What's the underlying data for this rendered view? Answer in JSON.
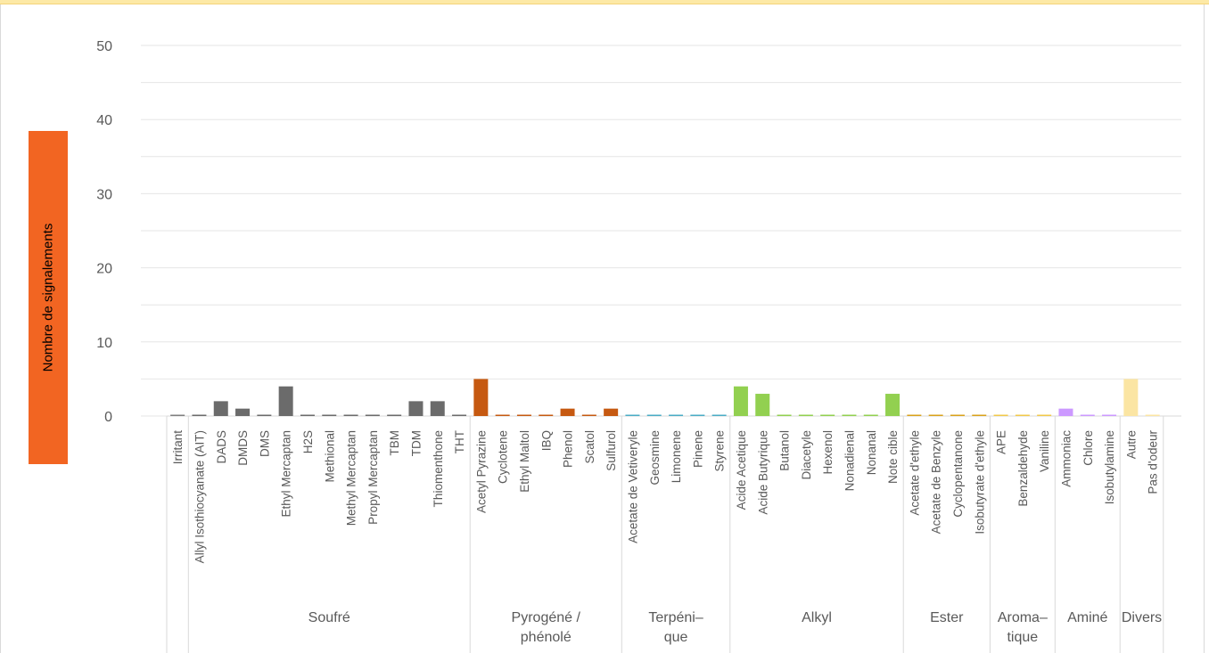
{
  "chart_data": {
    "type": "bar",
    "ylabel": "Nombre de signalements",
    "ylim": [
      0,
      50
    ],
    "yticks": [
      0,
      10,
      20,
      30,
      40,
      50
    ],
    "grid": true,
    "categories": [
      "Irritant",
      "Allyl Isothiocyanate (AIT)",
      "DADS",
      "DMDS",
      "DMS",
      "Ethyl Mercaptan",
      "H2S",
      "Methional",
      "Methyl Mercaptan",
      "Propyl Mercaptan",
      "TBM",
      "TDM",
      "Thiomenthone",
      "THT",
      "Acetyl Pyrazine",
      "Cyclotene",
      "Ethyl Maltol",
      "IBQ",
      "Phenol",
      "Scatol",
      "Sulfurol",
      "Acetate de Vetiveryle",
      "Geosmine",
      "Limonene",
      "Pinene",
      "Styrene",
      "Acide Acetique",
      "Acide Butyrique",
      "Butanol",
      "Diacetyle",
      "Hexenol",
      "Nonadienal",
      "Nonanal",
      "Note cible",
      "Acetate d'ethyle",
      "Acetate de Benzyle",
      "Cyclopentanone",
      "Isobutyrate d'ethyle",
      "APE",
      "Benzaldehyde",
      "Vaniline",
      "Ammoniac",
      "Chlore",
      "Isobutylamine",
      "Autre",
      "Pas d'odeur"
    ],
    "values": [
      0,
      0,
      2,
      1,
      0,
      4,
      0,
      0,
      0,
      0,
      0,
      2,
      2,
      0,
      5,
      0,
      0,
      0,
      1,
      0,
      1,
      0,
      0,
      0,
      0,
      0,
      4,
      3,
      0,
      0,
      0,
      0,
      0,
      3,
      0,
      0,
      0,
      0,
      0,
      0,
      0,
      1,
      0,
      0,
      5,
      0
    ],
    "groups": [
      {
        "name": "",
        "start": 0,
        "count": 1,
        "color": "#7f7f7f",
        "lines": []
      },
      {
        "name": "Soufré",
        "start": 1,
        "count": 13,
        "color": "#6b6b6b",
        "lines": [
          "Soufré"
        ]
      },
      {
        "name": "Pyrogéné / phénolé",
        "start": 14,
        "count": 7,
        "color": "#c65911",
        "lines": [
          "Pyrogéné /",
          "phénolé"
        ]
      },
      {
        "name": "Terpénique",
        "start": 21,
        "count": 5,
        "color": "#4bacc6",
        "lines": [
          "Terpéni–",
          "que"
        ]
      },
      {
        "name": "Alkyl",
        "start": 26,
        "count": 8,
        "color": "#92d050",
        "lines": [
          "Alkyl"
        ]
      },
      {
        "name": "Ester",
        "start": 34,
        "count": 4,
        "color": "#d9a21b",
        "lines": [
          "Ester"
        ]
      },
      {
        "name": "Aromatique",
        "start": 38,
        "count": 3,
        "color": "#f2c84b",
        "lines": [
          "Aroma–",
          "tique"
        ]
      },
      {
        "name": "Aminé",
        "start": 41,
        "count": 3,
        "color": "#cc99ff",
        "lines": [
          "Aminé"
        ]
      },
      {
        "name": "Divers",
        "start": 44,
        "count": 2,
        "color": "#fbe5a3",
        "lines": [
          "Divers"
        ]
      }
    ]
  }
}
